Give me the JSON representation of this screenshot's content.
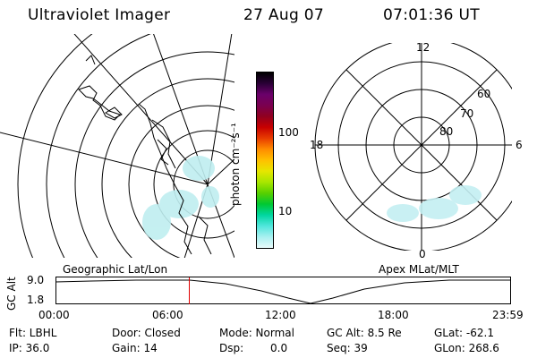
{
  "header": {
    "title": "Ultraviolet Imager",
    "date": "27 Aug 07",
    "time": "07:01:36 UT"
  },
  "colorbar": {
    "unit_label": "photon cm⁻²s⁻¹",
    "tick_labels": [
      "100",
      "10"
    ],
    "colors": [
      "#000000",
      "#2a0036",
      "#6a006a",
      "#7a0050",
      "#900020",
      "#c80000",
      "#e83c00",
      "#ff8c00",
      "#ffc000",
      "#e6e600",
      "#a8e600",
      "#58d000",
      "#00c832",
      "#00d6a0",
      "#50e6dc",
      "#a8f0f0",
      "#e8fafa"
    ]
  },
  "polar_labels": {
    "top": "12",
    "left": "18",
    "right": "6",
    "bottom": "0",
    "lat60": "60",
    "lat70": "70",
    "lat80": "80"
  },
  "map_captions": {
    "left": "Geographic Lat/Lon",
    "right": "Apex MLat/MLT"
  },
  "altitude_plot": {
    "ylabel": "GC Alt",
    "y_ticks": [
      "9.0",
      "1.8"
    ],
    "x_ticks": [
      "00:00",
      "06:00",
      "12:00",
      "18:00",
      "23:59"
    ],
    "current_time_marker_hours": 7.03
  },
  "status": {
    "filter": "Flt: LBHL",
    "ip": "IP: 36.0",
    "door": "Door: Closed",
    "gain": "Gain: 14",
    "mode": "Mode: Normal",
    "dsp_label": "Dsp:",
    "dsp_value": "0.0",
    "gc_alt": "GC Alt: 8.5 Re",
    "seq": "Seq: 39",
    "glat": "GLat: -62.1",
    "glon": "GLon: 268.6"
  }
}
